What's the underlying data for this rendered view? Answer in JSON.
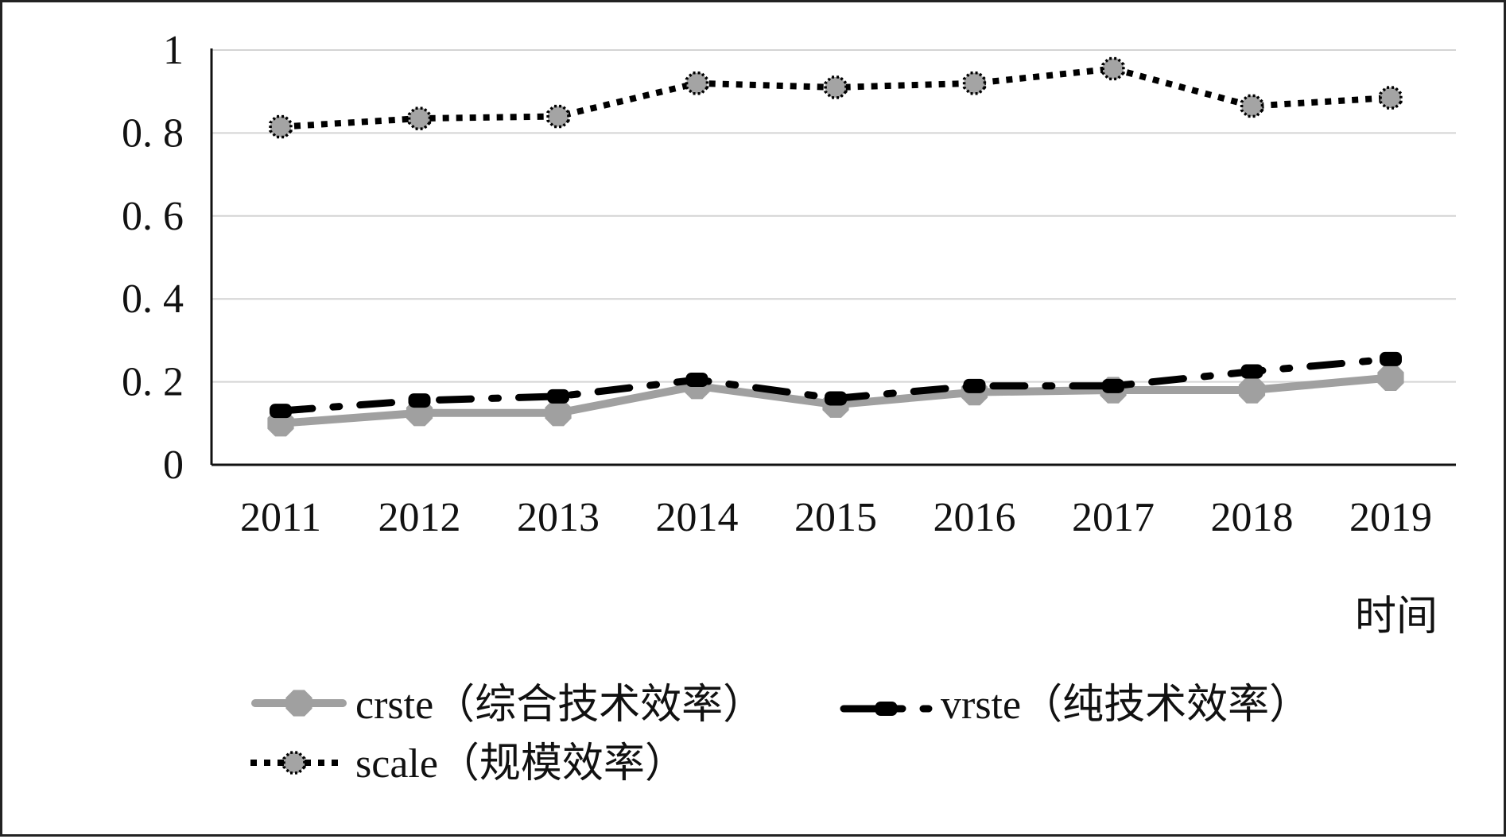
{
  "chart_data": {
    "type": "line",
    "categories": [
      "2011",
      "2012",
      "2013",
      "2014",
      "2015",
      "2016",
      "2017",
      "2018",
      "2019"
    ],
    "xlabel": "时间",
    "ylabel": "",
    "ylim": [
      0,
      1
    ],
    "yticks": [
      {
        "value": 0,
        "label": "0"
      },
      {
        "value": 0.2,
        "label": "0. 2"
      },
      {
        "value": 0.4,
        "label": "0. 4"
      },
      {
        "value": 0.6,
        "label": "0. 6"
      },
      {
        "value": 0.8,
        "label": "0. 8"
      },
      {
        "value": 1,
        "label": "1"
      }
    ],
    "grid": "horizontal",
    "legend_position": "bottom",
    "series": [
      {
        "name": "crste（综合技术效率）",
        "style": "solid",
        "color": "#a0a0a0",
        "marker": "octagon",
        "values": [
          0.1,
          0.125,
          0.125,
          0.19,
          0.145,
          0.175,
          0.18,
          0.18,
          0.21
        ]
      },
      {
        "name": "vrste（纯技术效率）",
        "style": "long-dash-dot",
        "color": "#000000",
        "marker": "dash",
        "values": [
          0.13,
          0.155,
          0.165,
          0.205,
          0.16,
          0.19,
          0.19,
          0.225,
          0.255
        ]
      },
      {
        "name": "scale（规模效率）",
        "style": "dotted",
        "color": "#000000",
        "marker": "dotted-octagon",
        "values": [
          0.815,
          0.835,
          0.84,
          0.92,
          0.91,
          0.92,
          0.955,
          0.865,
          0.885
        ]
      }
    ]
  }
}
